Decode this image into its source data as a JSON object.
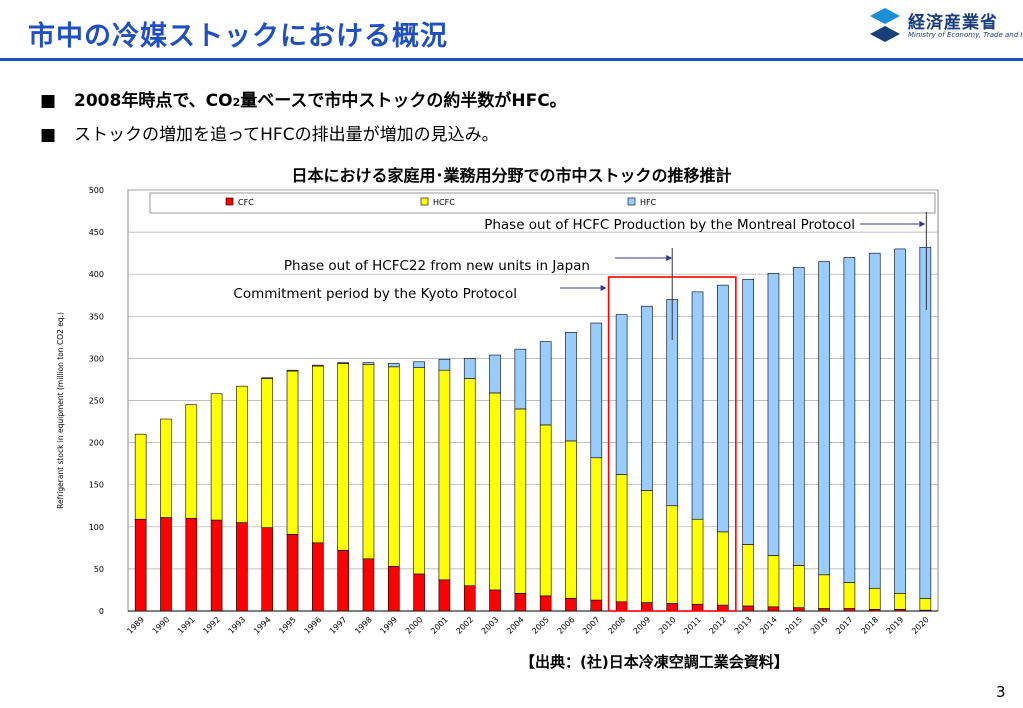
{
  "slide": {
    "title": "市中の冷媒ストックにおける概況",
    "logo_jp": "経済産業省",
    "logo_en": "Ministry of Economy, Trade and Industry",
    "bullet_mark": "■",
    "bullet1_a": "2008年時点で、CO",
    "bullet1_sub": "2",
    "bullet1_b": "量ベースで市中ストックの約半数がHFC。",
    "bullet2": "ストックの増加を追ってHFCの排出量が増加の見込み。",
    "source": "【出典：(社)日本冷凍空調工業会資料】",
    "page_number": "3",
    "colors": {
      "title": "#1f4fc1",
      "cfc": "#ff0000",
      "hcfc": "#ffff00",
      "hfc": "#99ccff",
      "highlight_box": "#ff0000",
      "arrow": "#333399"
    }
  },
  "chart_data": {
    "type": "bar",
    "stacked": true,
    "title": "日本における家庭用･業務用分野での市中ストックの推移推計",
    "ylabel": "Refrigerant stock in equipment (million ton CO2 eq.)",
    "xlabel": "",
    "ylim": [
      0,
      500
    ],
    "yticks": [
      0,
      50,
      100,
      150,
      200,
      250,
      300,
      350,
      400,
      450,
      500
    ],
    "grid": true,
    "legend": "top",
    "categories": [
      "1989",
      "1990",
      "1991",
      "1992",
      "1993",
      "1994",
      "1995",
      "1996",
      "1997",
      "1998",
      "1999",
      "2000",
      "2001",
      "2002",
      "2003",
      "2004",
      "2005",
      "2006",
      "2007",
      "2008",
      "2009",
      "2010",
      "2011",
      "2012",
      "2013",
      "2014",
      "2015",
      "2016",
      "2017",
      "2018",
      "2019",
      "2020"
    ],
    "series": [
      {
        "name": "CFC",
        "color": "#ff0000",
        "values": [
          109,
          111,
          110,
          108,
          105,
          99,
          91,
          81,
          72,
          62,
          53,
          44,
          37,
          30,
          25,
          21,
          18,
          15,
          13,
          11,
          10,
          9,
          8,
          7,
          6,
          5,
          4,
          3,
          3,
          2,
          2,
          1
        ]
      },
      {
        "name": "HCFC",
        "color": "#ffff00",
        "values": [
          101,
          117,
          135,
          150,
          162,
          177,
          194,
          210,
          222,
          231,
          237,
          245,
          249,
          246,
          234,
          219,
          203,
          187,
          169,
          151,
          133,
          116,
          101,
          87,
          73,
          61,
          50,
          40,
          31,
          25,
          19,
          14
        ]
      },
      {
        "name": "HFC",
        "color": "#99ccff",
        "values": [
          0,
          0,
          0,
          0,
          0,
          1,
          1,
          1,
          1,
          2,
          4,
          7,
          13,
          24,
          45,
          71,
          99,
          129,
          160,
          190,
          219,
          245,
          270,
          293,
          315,
          335,
          354,
          372,
          386,
          398,
          409,
          417
        ]
      }
    ],
    "annotations": [
      {
        "text": "Phase out of HCFC Production by the Montreal Protocol",
        "year": "2020"
      },
      {
        "text": "Phase out of HCFC22 from new units in Japan",
        "year": "2010"
      },
      {
        "text": "Commitment period by the Kyoto Protocol",
        "range": [
          "2008",
          "2012"
        ]
      }
    ]
  }
}
